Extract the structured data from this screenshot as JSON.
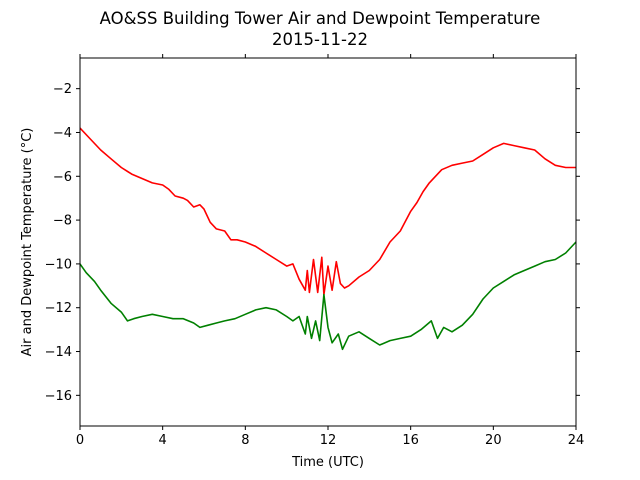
{
  "chart_data": {
    "type": "line",
    "title": "AO&SS Building Tower Air and Dewpoint Temperature",
    "subtitle": "2015-11-22",
    "xlabel": "Time (UTC)",
    "ylabel": "Air and Dewpoint Temperature (°C)",
    "xlim": [
      0,
      24
    ],
    "ylim": [
      -17.4,
      -0.6
    ],
    "xticks": [
      0,
      4,
      8,
      12,
      16,
      20,
      24
    ],
    "yticks": [
      -16,
      -14,
      -12,
      -10,
      -8,
      -6,
      -4,
      -2
    ],
    "grid": false,
    "legend": "none",
    "series": [
      {
        "color": "#ff0000",
        "x": [
          0,
          0.5,
          1,
          1.5,
          2,
          2.5,
          3,
          3.5,
          4,
          4.3,
          4.6,
          5,
          5.2,
          5.5,
          5.8,
          6,
          6.3,
          6.6,
          7,
          7.3,
          7.6,
          8,
          8.5,
          9,
          9.5,
          10,
          10.3,
          10.6,
          10.9,
          11,
          11.1,
          11.3,
          11.5,
          11.7,
          11.8,
          12,
          12.2,
          12.4,
          12.6,
          12.8,
          13,
          13.5,
          14,
          14.5,
          15,
          15.5,
          16,
          16.3,
          16.6,
          16.9,
          17.2,
          17.5,
          18,
          18.5,
          19,
          19.5,
          20,
          20.5,
          21,
          21.5,
          22,
          22.5,
          23,
          23.5,
          24
        ],
        "values": [
          -3.8,
          -4.3,
          -4.8,
          -5.2,
          -5.6,
          -5.9,
          -6.1,
          -6.3,
          -6.4,
          -6.6,
          -6.9,
          -7.0,
          -7.1,
          -7.4,
          -7.3,
          -7.5,
          -8.1,
          -8.4,
          -8.5,
          -8.9,
          -8.9,
          -9.0,
          -9.2,
          -9.5,
          -9.8,
          -10.1,
          -10.0,
          -10.7,
          -11.2,
          -10.3,
          -11.3,
          -9.8,
          -11.3,
          -9.7,
          -11.4,
          -10.1,
          -11.2,
          -9.9,
          -10.9,
          -11.1,
          -11.0,
          -10.6,
          -10.3,
          -9.8,
          -9.0,
          -8.5,
          -7.6,
          -7.2,
          -6.7,
          -6.3,
          -6.0,
          -5.7,
          -5.5,
          -5.4,
          -5.3,
          -5.0,
          -4.7,
          -4.5,
          -4.6,
          -4.7,
          -4.8,
          -5.2,
          -5.5,
          -5.6,
          -5.6
        ]
      },
      {
        "color": "#008000",
        "x": [
          0,
          0.3,
          0.7,
          1,
          1.5,
          2,
          2.3,
          2.6,
          3,
          3.5,
          4,
          4.5,
          5,
          5.5,
          5.8,
          6.2,
          6.6,
          7,
          7.5,
          8,
          8.5,
          9,
          9.5,
          10,
          10.3,
          10.6,
          10.9,
          11,
          11.2,
          11.4,
          11.6,
          11.8,
          12,
          12.2,
          12.5,
          12.7,
          13,
          13.5,
          14,
          14.5,
          15,
          15.5,
          16,
          16.5,
          17,
          17.3,
          17.6,
          18,
          18.5,
          19,
          19.5,
          20,
          20.5,
          21,
          21.5,
          22,
          22.5,
          23,
          23.5,
          24
        ],
        "values": [
          -10.0,
          -10.4,
          -10.8,
          -11.2,
          -11.8,
          -12.2,
          -12.6,
          -12.5,
          -12.4,
          -12.3,
          -12.4,
          -12.5,
          -12.5,
          -12.7,
          -12.9,
          -12.8,
          -12.7,
          -12.6,
          -12.5,
          -12.3,
          -12.1,
          -12.0,
          -12.1,
          -12.4,
          -12.6,
          -12.4,
          -13.2,
          -12.4,
          -13.4,
          -12.6,
          -13.5,
          -11.4,
          -12.9,
          -13.6,
          -13.2,
          -13.9,
          -13.3,
          -13.1,
          -13.4,
          -13.7,
          -13.5,
          -13.4,
          -13.3,
          -13.0,
          -12.6,
          -13.4,
          -12.9,
          -13.1,
          -12.8,
          -12.3,
          -11.6,
          -11.1,
          -10.8,
          -10.5,
          -10.3,
          -10.1,
          -9.9,
          -9.8,
          -9.5,
          -9.0
        ]
      }
    ]
  }
}
